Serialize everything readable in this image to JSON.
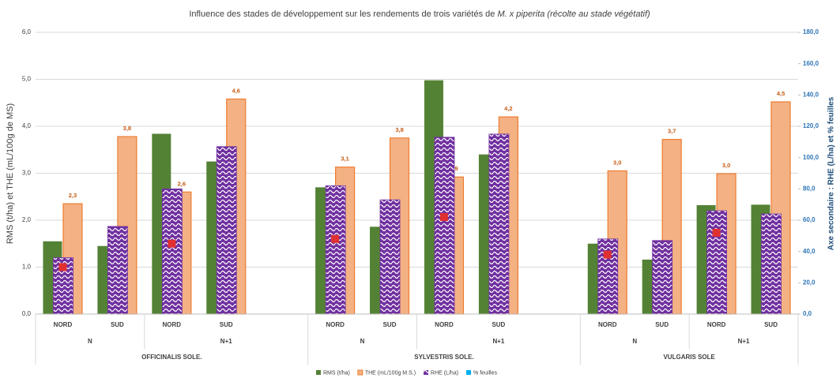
{
  "chart_data": {
    "type": "bar",
    "title": "Influence des stades de développement sur les rendements de trois variétés de ",
    "title_emphasis": "M. x piperita (récolte au stade végétatif)",
    "y_label": "RMS (t/ha) et THE (mL/100g de MS)",
    "y2_label": "Axe secondaire : RHE (L/ha) et % feuilles",
    "categories": [
      "NORD",
      "SUD",
      "NORD",
      "SUD",
      null,
      "NORD",
      "SUD",
      "NORD",
      "SUD",
      null,
      "NORD",
      "SUD",
      "NORD",
      "SUD"
    ],
    "stages": [
      {
        "label": "N",
        "start": 0,
        "end": 1
      },
      {
        "label": "N+1",
        "start": 2,
        "end": 4
      },
      {
        "label": "N",
        "start": 5,
        "end": 6
      },
      {
        "label": "N+1",
        "start": 7,
        "end": 9
      },
      {
        "label": "N",
        "start": 10,
        "end": 11
      },
      {
        "label": "N+1",
        "start": 12,
        "end": 13
      }
    ],
    "varieties": [
      {
        "label": "OFFICINALIS SOLE.",
        "start": 0,
        "end": 4
      },
      {
        "label": "SYLVESTRIS SOLE.",
        "start": 5,
        "end": 9
      },
      {
        "label": "VULGARIS SOLE",
        "start": 10,
        "end": 13
      }
    ],
    "ylim": [
      0,
      6
    ],
    "yticks": [
      {
        "value": 0,
        "label": "0,0"
      },
      {
        "value": 1,
        "label": "1,0"
      },
      {
        "value": 2,
        "label": "2,0"
      },
      {
        "value": 3,
        "label": "3,0"
      },
      {
        "value": 4,
        "label": "4,0"
      },
      {
        "value": 5,
        "label": "5,0"
      },
      {
        "value": 6,
        "label": "6,0"
      }
    ],
    "y2lim": [
      0,
      180
    ],
    "y2ticks": [
      {
        "value": 0,
        "label": "0,0"
      },
      {
        "value": 20,
        "label": "20,0"
      },
      {
        "value": 40,
        "label": "40,0"
      },
      {
        "value": 60,
        "label": "60,0"
      },
      {
        "value": 80,
        "label": "80,0"
      },
      {
        "value": 100,
        "label": "100,0"
      },
      {
        "value": 120,
        "label": "120,0"
      },
      {
        "value": 140,
        "label": "140,0"
      },
      {
        "value": 160,
        "label": "160,0"
      },
      {
        "value": 180,
        "label": "180,0"
      }
    ],
    "grid": true,
    "series": [
      {
        "name": "RMS (t/ha)",
        "color": "#548235",
        "values": [
          1.55,
          1.45,
          3.84,
          3.25,
          null,
          2.7,
          1.86,
          4.98,
          3.4,
          null,
          1.5,
          1.16,
          2.32,
          2.33
        ]
      },
      {
        "name": "THE (mL/100g M.S.)",
        "color": "#f4b183",
        "edge": "#ed7d31",
        "values": [
          2.35,
          3.78,
          2.6,
          4.58,
          null,
          3.13,
          3.75,
          2.92,
          4.2,
          null,
          3.05,
          3.72,
          2.99,
          4.52
        ],
        "value_labels": [
          "2,3",
          "3,8",
          "2,6",
          "4,6",
          null,
          "3,1",
          "3,8",
          "2,9",
          "4,2",
          null,
          "3,0",
          "3,7",
          "3,0",
          "4,5"
        ]
      },
      {
        "name": "RHE (L/ha)",
        "color": "#7030a0",
        "axis": "y2",
        "values": [
          36,
          56,
          80,
          107,
          null,
          82,
          73,
          113,
          115,
          null,
          48,
          47,
          66,
          64
        ]
      },
      {
        "name": "% feuilles",
        "color": "#00b0f0",
        "marker_color": "#e03030",
        "axis": "y2",
        "values": [
          30,
          null,
          45,
          null,
          null,
          48,
          null,
          62,
          null,
          null,
          38,
          null,
          52,
          null
        ]
      }
    ]
  }
}
